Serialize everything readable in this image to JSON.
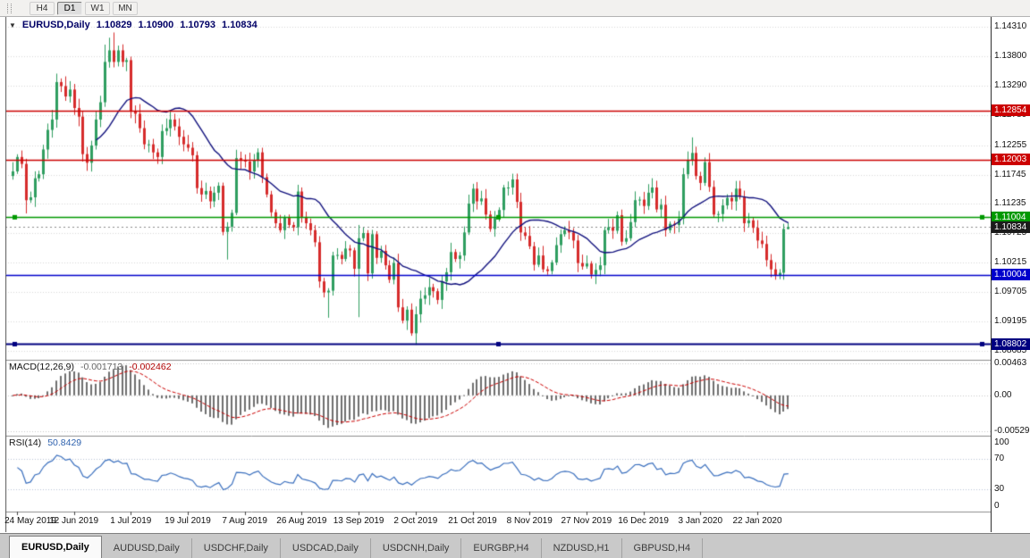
{
  "toolbar": {
    "timeframes": [
      {
        "label": "H4",
        "active": false
      },
      {
        "label": "D1",
        "active": true
      },
      {
        "label": "W1",
        "active": false
      },
      {
        "label": "MN",
        "active": false
      }
    ]
  },
  "chart": {
    "symbol_timeframe": "EURUSD,Daily",
    "open": "1.10829",
    "high": "1.10900",
    "low": "1.10793",
    "close": "1.10834"
  },
  "price_axis": {
    "ticks": [
      "1.14310",
      "1.13800",
      "1.13290",
      "1.12780",
      "1.12255",
      "1.11745",
      "1.11235",
      "1.10725",
      "1.10215",
      "1.09705",
      "1.09195",
      "1.08685"
    ]
  },
  "levels": [
    {
      "price": 1.12854,
      "label": "1.12854",
      "color": "#cc0000",
      "width": 1.6,
      "handles": false
    },
    {
      "price": 1.12003,
      "label": "1.12003",
      "color": "#cc0000",
      "width": 1.6,
      "handles": false
    },
    {
      "price": 1.11004,
      "label": "1.11004",
      "color": "#009900",
      "width": 1.6,
      "handles": true
    },
    {
      "price": 1.10004,
      "label": "1.10004",
      "color": "#0000cc",
      "width": 1.6,
      "handles": false
    },
    {
      "price": 1.08802,
      "label": "1.08802",
      "color": "#000080",
      "width": 2,
      "handles": true
    }
  ],
  "current_price": {
    "value": 1.10834,
    "label": "1.10834",
    "badge_color": "#1c1c1c"
  },
  "indicators": {
    "macd": {
      "name": "MACD(12,26,9)",
      "value_main": "-0.001713",
      "value_signal": "-0.002462",
      "axis_ticks": [
        "0.00463",
        "0.00",
        "-0.00529"
      ],
      "histogram_color": "#6f6f6f",
      "signal_color": "#cc0000"
    },
    "rsi": {
      "name": "RSI(14)",
      "value": "50.8429",
      "axis_ticks": [
        "100",
        "70",
        "30",
        "0"
      ],
      "levels": [
        70,
        30
      ],
      "line_color": "#3a6fbe"
    }
  },
  "x_axis": {
    "labels": [
      "24 May 2019",
      "12 Jun 2019",
      "1 Jul 2019",
      "19 Jul 2019",
      "7 Aug 2019",
      "26 Aug 2019",
      "13 Sep 2019",
      "2 Oct 2019",
      "21 Oct 2019",
      "8 Nov 2019",
      "27 Nov 2019",
      "16 Dec 2019",
      "3 Jan 2020",
      "22 Jan 2020"
    ],
    "first_bar_index": 1,
    "bar_step": 13
  },
  "tabs": [
    {
      "label": "EURUSD,Daily",
      "active": true
    },
    {
      "label": "AUDUSD,Daily",
      "active": false
    },
    {
      "label": "USDCHF,Daily",
      "active": false
    },
    {
      "label": "USDCAD,Daily",
      "active": false
    },
    {
      "label": "USDCNH,Daily",
      "active": false
    },
    {
      "label": "EURGBP,H4",
      "active": false
    },
    {
      "label": "NZDUSD,H1",
      "active": false
    },
    {
      "label": "GBPUSD,H4",
      "active": false
    }
  ],
  "chart_data": {
    "type": "candlestick",
    "symbol": "EURUSD",
    "timeframe": "Daily",
    "up_color": "#2f9e60",
    "down_color": "#d62b2b",
    "ma_period": 20,
    "ma_color": "#12127e",
    "price_range": {
      "top": 1.1448,
      "bottom": 1.0853
    },
    "open_first": 1.1172,
    "closes": [
      1.118,
      1.1205,
      1.1193,
      1.113,
      1.1135,
      1.1168,
      1.1175,
      1.1218,
      1.1252,
      1.127,
      1.1335,
      1.1328,
      1.131,
      1.1322,
      1.129,
      1.1275,
      1.121,
      1.1195,
      1.1225,
      1.127,
      1.13,
      1.137,
      1.139,
      1.137,
      1.139,
      1.137,
      1.1373,
      1.1285,
      1.128,
      1.1255,
      1.1227,
      1.1227,
      1.1213,
      1.1205,
      1.125,
      1.1255,
      1.127,
      1.1258,
      1.124,
      1.1227,
      1.1221,
      1.1208,
      1.1151,
      1.114,
      1.1146,
      1.1128,
      1.1143,
      1.1155,
      1.1075,
      1.1084,
      1.1108,
      1.1203,
      1.12,
      1.1197,
      1.118,
      1.12,
      1.1213,
      1.117,
      1.114,
      1.1109,
      1.109,
      1.1078,
      1.11,
      1.1087,
      1.1083,
      1.1145,
      1.1101,
      1.109,
      1.1078,
      1.1057,
      1.0989,
      1.097,
      1.0973,
      1.1034,
      1.1035,
      1.1028,
      1.1046,
      1.1043,
      1.1011,
      1.1064,
      1.1073,
      1.1003,
      1.1071,
      1.103,
      1.1042,
      1.1017,
      1.0992,
      1.1021,
      1.0944,
      1.0921,
      1.094,
      1.0899,
      1.0932,
      1.0959,
      1.0965,
      1.0979,
      1.0972,
      1.0957,
      1.0989,
      1.1005,
      1.104,
      1.1028,
      1.1034,
      1.1074,
      1.1124,
      1.115,
      1.1128,
      1.1133,
      1.1105,
      1.108,
      1.1099,
      1.1113,
      1.1152,
      1.1152,
      1.1166,
      1.1127,
      1.1074,
      1.1068,
      1.105,
      1.1018,
      1.1034,
      1.101,
      1.1007,
      1.1022,
      1.1052,
      1.1071,
      1.1078,
      1.1074,
      1.106,
      1.1021,
      1.1015,
      1.102,
      1.1001,
      1.1009,
      1.1017,
      1.1078,
      1.1083,
      1.1077,
      1.1104,
      1.1058,
      1.1064,
      1.1092,
      1.113,
      1.1131,
      1.112,
      1.1143,
      1.1152,
      1.1114,
      1.1122,
      1.1078,
      1.1089,
      1.1087,
      1.1098,
      1.1175,
      1.1199,
      1.1212,
      1.1172,
      1.116,
      1.1196,
      1.1153,
      1.1105,
      1.1106,
      1.1121,
      1.1134,
      1.1128,
      1.115,
      1.1136,
      1.109,
      1.1095,
      1.1082,
      1.106,
      1.1054,
      1.1026,
      1.101,
      1.1,
      1.1004,
      1.108,
      1.10834
    ],
    "extremes": {
      "3": {
        "l": 1.1107
      },
      "21": {
        "h": 1.14
      },
      "22": {
        "h": 1.1412
      },
      "23": {
        "h": 1.1421
      },
      "49": {
        "l": 1.1027
      },
      "72": {
        "l": 1.0926
      },
      "79": {
        "h": 1.1087,
        "l": 1.0927
      },
      "92": {
        "l": 1.0879
      },
      "155": {
        "h": 1.1239
      },
      "174": {
        "l": 1.0992
      },
      "175": {
        "l": 1.0993
      },
      "177": {
        "h": 1.109,
        "l": 1.10793
      }
    }
  }
}
